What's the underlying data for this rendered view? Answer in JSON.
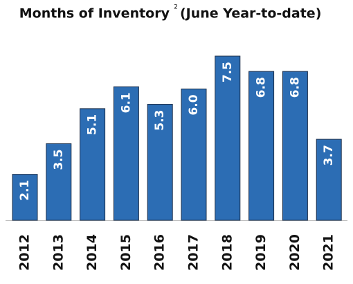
{
  "chart_data": {
    "type": "bar",
    "title": "Months of Inventory",
    "title_note": "2",
    "subtitle": "(June Year-to-date)",
    "categories": [
      "2012",
      "2013",
      "2014",
      "2015",
      "2016",
      "2017",
      "2018",
      "2019",
      "2020",
      "2021"
    ],
    "values": [
      2.1,
      3.5,
      5.1,
      6.1,
      5.3,
      6.0,
      7.5,
      6.8,
      6.8,
      3.7
    ],
    "value_labels": [
      "2.1",
      "3.5",
      "5.1",
      "6.1",
      "5.3",
      "6.0",
      "7.5",
      "6.8",
      "6.8",
      "3.7"
    ],
    "color": "#2c6db4"
  }
}
